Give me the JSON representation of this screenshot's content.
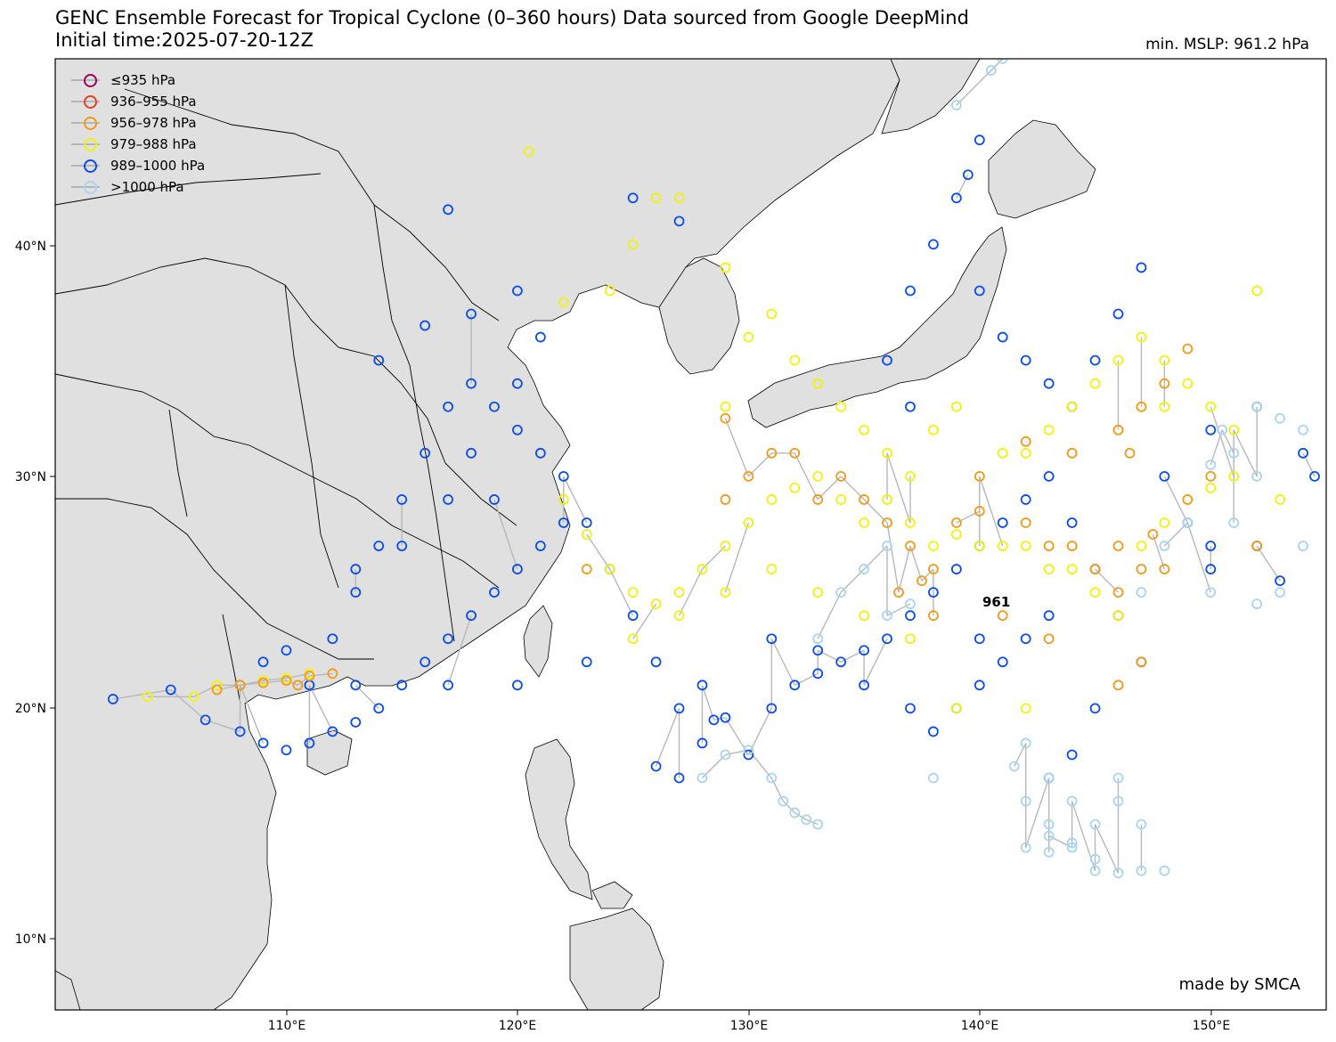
{
  "header": {
    "title_line1": "GENC Ensemble Forecast for Tropical Cyclone (0–360 hours) Data sourced from Google DeepMind",
    "title_line2": "Initial time:2025-07-20-12Z",
    "min_mslp": "min. MSLP: 961.2 hPa"
  },
  "legend": {
    "items": [
      {
        "label": "≤935 hPa",
        "color": "#a0005a"
      },
      {
        "label": "936–955 hPa",
        "color": "#e8411f"
      },
      {
        "label": "956–978 hPa",
        "color": "#f39a1e"
      },
      {
        "label": "979–988 hPa",
        "color": "#f2f20f"
      },
      {
        "label": "989–1000 hPa",
        "color": "#0a4cf0"
      },
      {
        "label": ">1000 hPa",
        "color": "#a9d4f2"
      }
    ]
  },
  "axes": {
    "lat_ticks": [
      "40°N",
      "30°N",
      "20°N",
      "10°N"
    ],
    "lon_ticks": [
      "110°E",
      "120°E",
      "130°E",
      "140°E",
      "150°E"
    ]
  },
  "marker_label": "961",
  "credit": "made by SMCA",
  "colors": {
    "land": "#e0e0e0",
    "ocean": "#ffffff",
    "track": "#b8b8b8",
    "border": "#000000"
  },
  "chart_data": {
    "type": "scatter",
    "xlim": [
      100,
      155
    ],
    "ylim": [
      7,
      48
    ],
    "series": [
      {
        "name": "989–1000 hPa",
        "color": "#0a4cf0",
        "points": [
          [
            102.5,
            20.4
          ],
          [
            105,
            20.8
          ],
          [
            106.5,
            19.5
          ],
          [
            108,
            19
          ],
          [
            109,
            18.5
          ],
          [
            110,
            18.2
          ],
          [
            111,
            18.5
          ],
          [
            112,
            19
          ],
          [
            113,
            19.4
          ],
          [
            114,
            20
          ],
          [
            115,
            21
          ],
          [
            116,
            22
          ],
          [
            117,
            23
          ],
          [
            118,
            24
          ],
          [
            119,
            25
          ],
          [
            120,
            26
          ],
          [
            121,
            27
          ],
          [
            122,
            28
          ],
          [
            112,
            23
          ],
          [
            113,
            25
          ],
          [
            114,
            27
          ],
          [
            115,
            29
          ],
          [
            116,
            31
          ],
          [
            117,
            33
          ],
          [
            118,
            34
          ],
          [
            119,
            33
          ],
          [
            120,
            32
          ],
          [
            121,
            31
          ],
          [
            122,
            30
          ],
          [
            123,
            28
          ],
          [
            124,
            26
          ],
          [
            125,
            24
          ],
          [
            126,
            22
          ],
          [
            127,
            20
          ],
          [
            128,
            18.5
          ],
          [
            126,
            17.5
          ],
          [
            127,
            17
          ],
          [
            128.5,
            19.5
          ],
          [
            129,
            19.6
          ],
          [
            130,
            18
          ],
          [
            131,
            20
          ],
          [
            132,
            21
          ],
          [
            133,
            21.5
          ],
          [
            134,
            22
          ],
          [
            135,
            22.5
          ],
          [
            136,
            23
          ],
          [
            137,
            24
          ],
          [
            138,
            25
          ],
          [
            139,
            26
          ],
          [
            140,
            27
          ],
          [
            141,
            28
          ],
          [
            142,
            29
          ],
          [
            143,
            30
          ],
          [
            144,
            28
          ],
          [
            145,
            26
          ],
          [
            146,
            24
          ],
          [
            147,
            22
          ],
          [
            145,
            20
          ],
          [
            144,
            18
          ],
          [
            143,
            17
          ],
          [
            138,
            19
          ],
          [
            139,
            20
          ],
          [
            140,
            21
          ],
          [
            141,
            22
          ],
          [
            142,
            23
          ],
          [
            143,
            24
          ],
          [
            137,
            33
          ],
          [
            136,
            35
          ],
          [
            137,
            38
          ],
          [
            138,
            40
          ],
          [
            139,
            42
          ],
          [
            139.5,
            43
          ],
          [
            140,
            44.5
          ],
          [
            140,
            38
          ],
          [
            141,
            36
          ],
          [
            142,
            35
          ],
          [
            143,
            34
          ],
          [
            144,
            33
          ],
          [
            145,
            35
          ],
          [
            146,
            37
          ],
          [
            147,
            39
          ],
          [
            125,
            42
          ],
          [
            127,
            41
          ],
          [
            117,
            41.5
          ],
          [
            114,
            35
          ],
          [
            116,
            36.5
          ],
          [
            118,
            37
          ],
          [
            120,
            38
          ],
          [
            121,
            36
          ],
          [
            120,
            34
          ],
          [
            118,
            31
          ],
          [
            119,
            29
          ],
          [
            117,
            29
          ],
          [
            115,
            27
          ],
          [
            113,
            26
          ],
          [
            108,
            21
          ],
          [
            109,
            22
          ],
          [
            110,
            22.5
          ],
          [
            111,
            21
          ],
          [
            113,
            21
          ],
          [
            117,
            21
          ],
          [
            120,
            21
          ],
          [
            123,
            22
          ],
          [
            128,
            21
          ],
          [
            131,
            23
          ],
          [
            133,
            22.5
          ],
          [
            135,
            21
          ],
          [
            137,
            20
          ],
          [
            140,
            23
          ],
          [
            150,
            32
          ],
          [
            152,
            33
          ],
          [
            154,
            31
          ],
          [
            152,
            27
          ],
          [
            150,
            26
          ],
          [
            153,
            25.5
          ],
          [
            154.5,
            30
          ],
          [
            148,
            30
          ],
          [
            149,
            28
          ],
          [
            150,
            27
          ]
        ]
      },
      {
        "name": "979–988 hPa",
        "color": "#f2f20f",
        "points": [
          [
            106,
            20.5
          ],
          [
            107,
            21
          ],
          [
            108,
            21
          ],
          [
            109,
            21.2
          ],
          [
            110,
            21.3
          ],
          [
            111,
            21.5
          ],
          [
            104,
            20.5
          ],
          [
            122,
            29
          ],
          [
            123,
            27.5
          ],
          [
            124,
            26
          ],
          [
            125,
            25
          ],
          [
            126,
            24.5
          ],
          [
            127,
            25
          ],
          [
            128,
            26
          ],
          [
            129,
            27
          ],
          [
            130,
            28
          ],
          [
            131,
            29
          ],
          [
            132,
            29.5
          ],
          [
            133,
            30
          ],
          [
            134,
            29
          ],
          [
            135,
            28
          ],
          [
            136,
            29
          ],
          [
            137,
            28
          ],
          [
            138,
            27
          ],
          [
            139,
            27.5
          ],
          [
            140,
            27
          ],
          [
            141,
            27
          ],
          [
            142,
            27
          ],
          [
            143,
            26
          ],
          [
            144,
            26
          ],
          [
            145,
            25
          ],
          [
            146,
            24
          ],
          [
            147,
            27
          ],
          [
            148,
            28
          ],
          [
            149,
            29
          ],
          [
            150,
            29.5
          ],
          [
            151,
            30
          ],
          [
            152,
            30
          ],
          [
            153,
            29
          ],
          [
            120.5,
            44
          ],
          [
            122,
            37.5
          ],
          [
            124,
            38
          ],
          [
            125,
            40
          ],
          [
            127,
            42
          ],
          [
            126,
            42
          ],
          [
            129,
            39
          ],
          [
            129,
            33
          ],
          [
            130,
            36
          ],
          [
            131,
            37
          ],
          [
            132,
            35
          ],
          [
            133,
            34
          ],
          [
            134,
            33
          ],
          [
            135,
            32
          ],
          [
            136,
            31
          ],
          [
            137,
            30
          ],
          [
            138,
            32
          ],
          [
            139,
            33
          ],
          [
            140,
            30
          ],
          [
            141,
            31
          ],
          [
            142,
            31
          ],
          [
            143,
            32
          ],
          [
            144,
            33
          ],
          [
            145,
            34
          ],
          [
            146,
            35
          ],
          [
            147,
            36
          ],
          [
            148,
            35
          ],
          [
            149,
            34
          ],
          [
            150,
            33
          ],
          [
            151,
            32
          ],
          [
            152,
            38
          ],
          [
            146,
            32
          ],
          [
            147,
            33
          ],
          [
            148,
            33
          ],
          [
            142,
            20
          ],
          [
            139,
            20
          ],
          [
            137,
            23
          ],
          [
            135,
            24
          ],
          [
            133,
            25
          ],
          [
            131,
            26
          ],
          [
            129,
            25
          ],
          [
            127,
            24
          ],
          [
            125,
            23
          ]
        ]
      },
      {
        "name": "956–978 hPa",
        "color": "#f39a1e",
        "points": [
          [
            107,
            20.8
          ],
          [
            108,
            21
          ],
          [
            109,
            21.1
          ],
          [
            110,
            21.2
          ],
          [
            111,
            21.4
          ],
          [
            112,
            21.5
          ],
          [
            110.5,
            21
          ],
          [
            129,
            29
          ],
          [
            130,
            30
          ],
          [
            132,
            31
          ],
          [
            134,
            30
          ],
          [
            135,
            29
          ],
          [
            136,
            28
          ],
          [
            137,
            27
          ],
          [
            138,
            26
          ],
          [
            139,
            28
          ],
          [
            140,
            28.5
          ],
          [
            142,
            28
          ],
          [
            143,
            27
          ],
          [
            144,
            27
          ],
          [
            145,
            26
          ],
          [
            146,
            25
          ],
          [
            147,
            26
          ],
          [
            148,
            26
          ],
          [
            149,
            29
          ],
          [
            150,
            30
          ],
          [
            147,
            33
          ],
          [
            148,
            34
          ],
          [
            149,
            35.5
          ],
          [
            146,
            32
          ],
          [
            146.5,
            31
          ],
          [
            144,
            31
          ],
          [
            142,
            31.5
          ],
          [
            140,
            30
          ],
          [
            138,
            24
          ],
          [
            141,
            24
          ],
          [
            143,
            23
          ],
          [
            146,
            21
          ],
          [
            147,
            22
          ],
          [
            129,
            32.5
          ],
          [
            131,
            31
          ],
          [
            133,
            29
          ],
          [
            123,
            26
          ],
          [
            136.5,
            25
          ],
          [
            137.5,
            25.5
          ],
          [
            146,
            27
          ],
          [
            147.5,
            27.5
          ],
          [
            152,
            27
          ]
        ]
      },
      {
        "name": ">1000 hPa",
        "color": "#a9d4f2",
        "points": [
          [
            142,
            18.5
          ],
          [
            143,
            17
          ],
          [
            142,
            16
          ],
          [
            143,
            15
          ],
          [
            144,
            14
          ],
          [
            145,
            13
          ],
          [
            146,
            12.9
          ],
          [
            147,
            13
          ],
          [
            148,
            13
          ],
          [
            142,
            14
          ],
          [
            143,
            13.8
          ],
          [
            144,
            14.2
          ],
          [
            145,
            13.5
          ],
          [
            145,
            15
          ],
          [
            146,
            16
          ],
          [
            147,
            15
          ],
          [
            146,
            17
          ],
          [
            144,
            16
          ],
          [
            143,
            14.5
          ],
          [
            141.5,
            17.5
          ],
          [
            128,
            17
          ],
          [
            129,
            18
          ],
          [
            130,
            18.2
          ],
          [
            131,
            17
          ],
          [
            131.5,
            16
          ],
          [
            132,
            15.5
          ],
          [
            132.5,
            15.2
          ],
          [
            133,
            15
          ],
          [
            138,
            17
          ],
          [
            133,
            23
          ],
          [
            134,
            25
          ],
          [
            135,
            26
          ],
          [
            136,
            27
          ],
          [
            150,
            25
          ],
          [
            152,
            24.5
          ],
          [
            153,
            25
          ],
          [
            154,
            27
          ],
          [
            152,
            33
          ],
          [
            153,
            32.5
          ],
          [
            154,
            32
          ],
          [
            151,
            31
          ],
          [
            150,
            30.5
          ],
          [
            150.5,
            32
          ],
          [
            149,
            28
          ],
          [
            148,
            27
          ],
          [
            147,
            25
          ],
          [
            151,
            28
          ],
          [
            152,
            30
          ],
          [
            139,
            46
          ],
          [
            140.5,
            47.5
          ],
          [
            141,
            48
          ],
          [
            136,
            24
          ],
          [
            137,
            24.5
          ]
        ]
      }
    ]
  }
}
